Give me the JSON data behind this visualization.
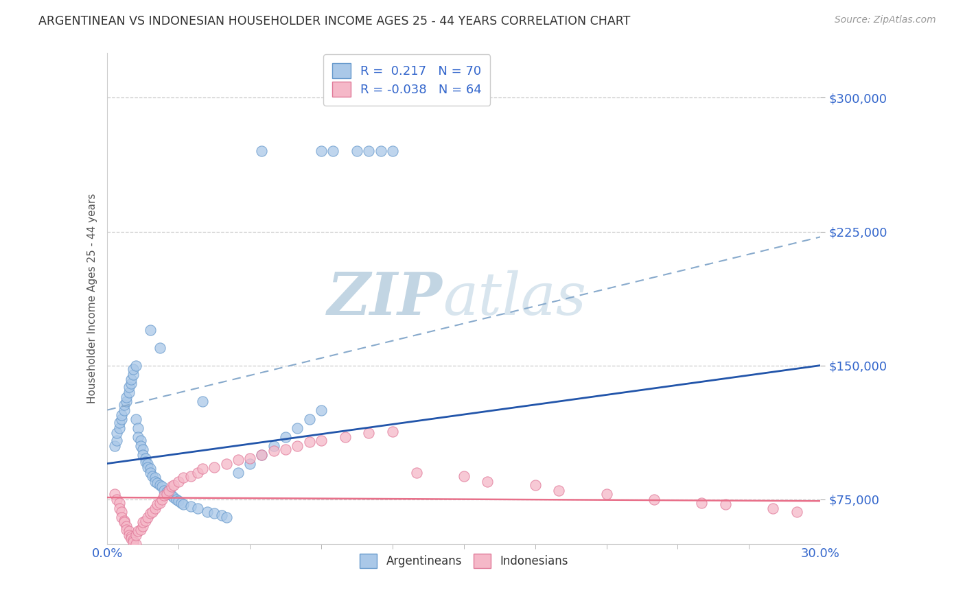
{
  "title": "ARGENTINEAN VS INDONESIAN HOUSEHOLDER INCOME AGES 25 - 44 YEARS CORRELATION CHART",
  "source": "Source: ZipAtlas.com",
  "ylabel": "Householder Income Ages 25 - 44 years",
  "xlim": [
    0.0,
    0.3
  ],
  "ylim": [
    50000,
    325000
  ],
  "yticks": [
    75000,
    150000,
    225000,
    300000
  ],
  "ytick_labels": [
    "$75,000",
    "$150,000",
    "$225,000",
    "$300,000"
  ],
  "xtick_left": "0.0%",
  "xtick_right": "30.0%",
  "argentina_color": "#aac8e8",
  "argentina_edge": "#6699cc",
  "indonesia_color": "#f5b8c8",
  "indonesia_edge": "#e07898",
  "trend_blue_solid_color": "#2255aa",
  "trend_blue_dashed_color": "#88aacc",
  "trend_pink_color": "#e8708a",
  "R_argentina": 0.217,
  "N_argentina": 70,
  "R_indonesia": -0.038,
  "N_indonesia": 64,
  "watermark_zip": "ZIP",
  "watermark_atlas": "atlas",
  "watermark_color": "#c8d8e8",
  "background_color": "#ffffff",
  "grid_color": "#cccccc",
  "title_color": "#333333",
  "source_color": "#999999",
  "axis_tick_color": "#3366cc",
  "ylabel_color": "#555555",
  "legend_text_color": "#3366cc",
  "arg_scatter_x": [
    0.003,
    0.004,
    0.004,
    0.005,
    0.005,
    0.006,
    0.006,
    0.007,
    0.007,
    0.008,
    0.008,
    0.009,
    0.009,
    0.01,
    0.01,
    0.011,
    0.011,
    0.012,
    0.012,
    0.013,
    0.013,
    0.014,
    0.014,
    0.015,
    0.015,
    0.016,
    0.016,
    0.017,
    0.017,
    0.018,
    0.018,
    0.019,
    0.02,
    0.02,
    0.021,
    0.022,
    0.023,
    0.024,
    0.025,
    0.026,
    0.027,
    0.028,
    0.029,
    0.03,
    0.031,
    0.032,
    0.035,
    0.038,
    0.042,
    0.045,
    0.048,
    0.05,
    0.055,
    0.06,
    0.065,
    0.07,
    0.075,
    0.08,
    0.085,
    0.09,
    0.065,
    0.09,
    0.095,
    0.105,
    0.11,
    0.115,
    0.12,
    0.04,
    0.018,
    0.022
  ],
  "arg_scatter_y": [
    105000,
    108000,
    112000,
    115000,
    118000,
    120000,
    122000,
    125000,
    128000,
    130000,
    132000,
    135000,
    138000,
    140000,
    142000,
    145000,
    148000,
    150000,
    120000,
    115000,
    110000,
    108000,
    105000,
    103000,
    100000,
    98000,
    96000,
    95000,
    93000,
    92000,
    90000,
    88000,
    87000,
    85000,
    84000,
    83000,
    82000,
    80000,
    79000,
    78000,
    77000,
    76000,
    75000,
    74000,
    73000,
    72000,
    71000,
    70000,
    68000,
    67000,
    66000,
    65000,
    90000,
    95000,
    100000,
    105000,
    110000,
    115000,
    120000,
    125000,
    270000,
    270000,
    270000,
    270000,
    270000,
    270000,
    270000,
    130000,
    170000,
    160000
  ],
  "ind_scatter_x": [
    0.003,
    0.004,
    0.005,
    0.005,
    0.006,
    0.006,
    0.007,
    0.007,
    0.008,
    0.008,
    0.009,
    0.009,
    0.01,
    0.01,
    0.011,
    0.011,
    0.012,
    0.012,
    0.013,
    0.014,
    0.015,
    0.015,
    0.016,
    0.017,
    0.018,
    0.019,
    0.02,
    0.021,
    0.022,
    0.023,
    0.024,
    0.025,
    0.026,
    0.027,
    0.028,
    0.03,
    0.032,
    0.035,
    0.038,
    0.04,
    0.045,
    0.05,
    0.055,
    0.06,
    0.065,
    0.07,
    0.075,
    0.08,
    0.085,
    0.09,
    0.1,
    0.11,
    0.12,
    0.13,
    0.15,
    0.16,
    0.18,
    0.19,
    0.21,
    0.23,
    0.25,
    0.26,
    0.28,
    0.29
  ],
  "ind_scatter_y": [
    78000,
    75000,
    73000,
    70000,
    68000,
    65000,
    63000,
    62000,
    60000,
    58000,
    57000,
    55000,
    54000,
    53000,
    52000,
    51000,
    50000,
    55000,
    57000,
    58000,
    60000,
    62000,
    63000,
    65000,
    67000,
    68000,
    70000,
    72000,
    73000,
    75000,
    77000,
    78000,
    80000,
    82000,
    83000,
    85000,
    87000,
    88000,
    90000,
    92000,
    93000,
    95000,
    97000,
    98000,
    100000,
    102000,
    103000,
    105000,
    107000,
    108000,
    110000,
    112000,
    113000,
    90000,
    88000,
    85000,
    83000,
    80000,
    78000,
    75000,
    73000,
    72000,
    70000,
    68000
  ]
}
